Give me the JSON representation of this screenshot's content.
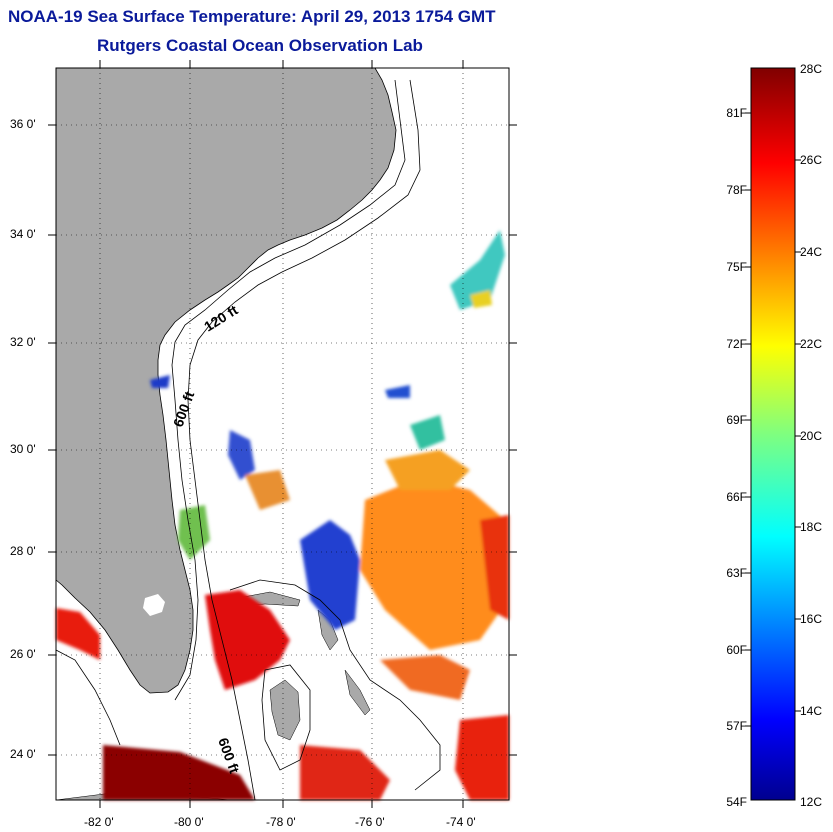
{
  "title": {
    "line1": "NOAA-19 Sea Surface Temperature:  April 29, 2013 1754 GMT",
    "line2": "Rutgers Coastal Ocean Observation Lab"
  },
  "map": {
    "lon_range": [
      -83,
      -73
    ],
    "lat_range": [
      23,
      37
    ],
    "lat_labels": [
      "36 0'",
      "34 0'",
      "32 0'",
      "30 0'",
      "28 0'",
      "26 0'",
      "24 0'"
    ],
    "lon_labels": [
      "-82 0'",
      "-80 0'",
      "-78 0'",
      "-76 0'",
      "-74 0'"
    ],
    "contour_labels": [
      "120 ft",
      "600 ft",
      "600 ft"
    ],
    "land_color": "#a9a9a9"
  },
  "colorbar": {
    "fahrenheit_labels": [
      "81F",
      "78F",
      "75F",
      "72F",
      "69F",
      "66F",
      "63F",
      "60F",
      "57F",
      "54F"
    ],
    "celsius_labels": [
      "28C",
      "26C",
      "24C",
      "22C",
      "20C",
      "18C",
      "16C",
      "14C",
      "12C"
    ],
    "range_c": [
      12,
      28
    ],
    "colormap": "jet"
  }
}
